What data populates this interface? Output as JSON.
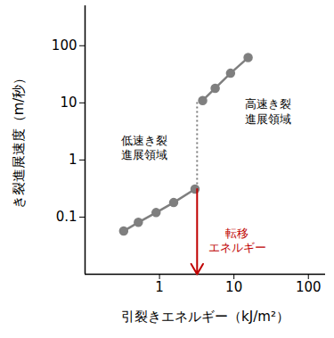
{
  "chart_data": {
    "type": "scatter",
    "log": true,
    "grid": false,
    "x_label": "引裂きエネルギー（kJ/m²）",
    "y_label": "き裂進展速度（m/秒）",
    "xlim": [
      0.1,
      170
    ],
    "ylim": [
      0.01,
      500
    ],
    "xticks": [
      1,
      10,
      100
    ],
    "yticks": [
      0.1,
      1,
      10,
      100
    ],
    "series": [
      {
        "color": "#7f7f7f",
        "marker": "circle",
        "line_style": "solid",
        "x": [
          0.33,
          0.52,
          0.9,
          1.55,
          3.0
        ],
        "values": [
          0.057,
          0.081,
          0.12,
          0.18,
          0.31
        ]
      },
      {
        "color": "#7f7f7f",
        "marker": "circle",
        "line_style": "solid",
        "x": [
          3.8,
          5.6,
          9.0,
          15.5
        ],
        "values": [
          11,
          18,
          33,
          62
        ]
      }
    ],
    "transition": {
      "x": 3.2,
      "label": "転移\nエネルギー",
      "color": "#c00000",
      "line_style": "dotted"
    },
    "annotations": [
      {
        "text": "低速き裂\n進展領域",
        "x": 0.63,
        "y": 1.7
      },
      {
        "text": "高速き裂\n進展領域",
        "x": 29,
        "y": 7.2
      }
    ],
    "transition_label_position": {
      "x": 11,
      "y": 0.04
    }
  }
}
